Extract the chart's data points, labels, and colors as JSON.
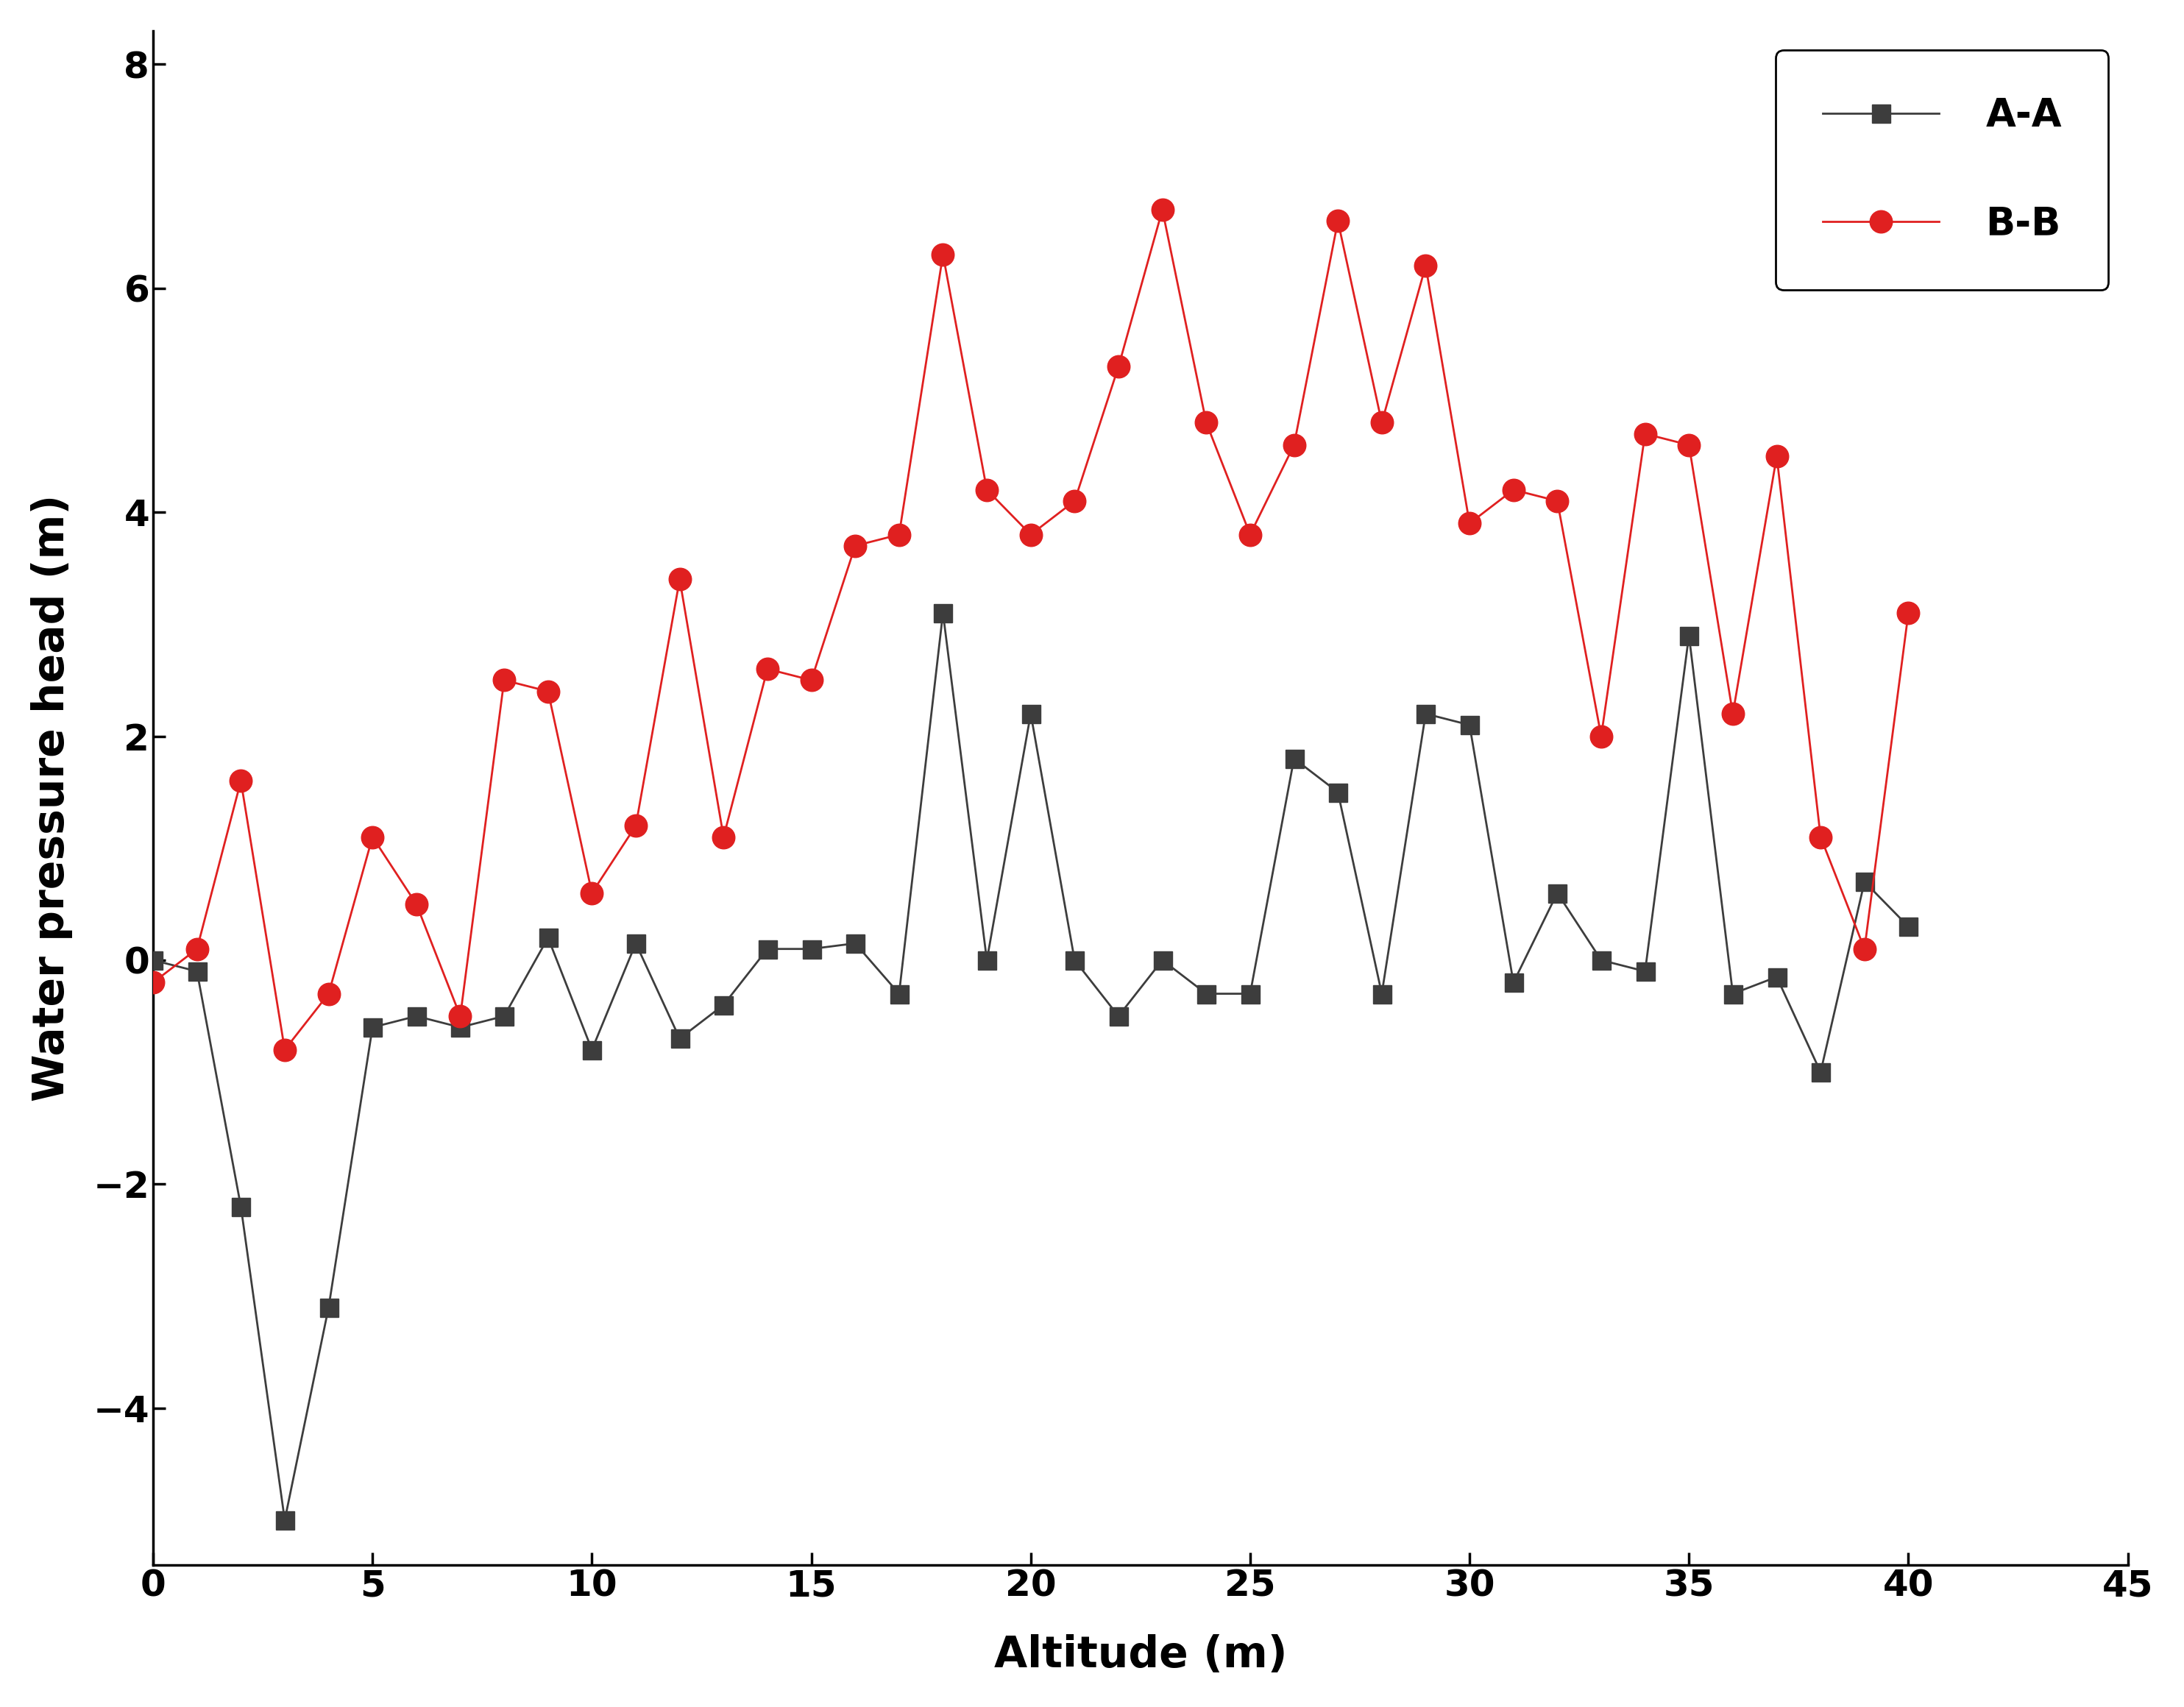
{
  "aa_x": [
    0,
    1,
    2,
    3,
    4,
    5,
    6,
    7,
    8,
    9,
    10,
    11,
    12,
    13,
    14,
    15,
    16,
    17,
    18,
    19,
    20,
    21,
    22,
    23,
    24,
    25,
    26,
    27,
    28,
    29,
    30,
    31,
    32,
    33,
    34,
    35,
    36,
    37,
    38,
    39,
    40
  ],
  "aa_y": [
    0.0,
    -0.1,
    -2.2,
    -5.0,
    -3.1,
    -0.6,
    -0.5,
    -0.6,
    -0.5,
    0.2,
    -0.8,
    0.15,
    -0.7,
    -0.4,
    0.1,
    0.1,
    0.15,
    -0.3,
    3.1,
    0.0,
    2.2,
    0.0,
    -0.5,
    0.0,
    -0.3,
    -0.3,
    1.8,
    1.5,
    -0.3,
    2.2,
    2.1,
    -0.2,
    0.6,
    0.0,
    -0.1,
    2.9,
    -0.3,
    -0.15,
    -1.0,
    0.7,
    0.3
  ],
  "bb_x": [
    0,
    1,
    2,
    3,
    4,
    5,
    6,
    7,
    8,
    9,
    10,
    11,
    12,
    13,
    14,
    15,
    16,
    17,
    18,
    19,
    20,
    21,
    22,
    23,
    24,
    25,
    26,
    27,
    28,
    29,
    30,
    31,
    32,
    33,
    34,
    35,
    36,
    37,
    38,
    39,
    40
  ],
  "bb_y": [
    -0.2,
    0.1,
    1.6,
    -0.8,
    -0.3,
    1.1,
    0.5,
    -0.5,
    2.5,
    2.4,
    0.6,
    1.2,
    3.4,
    1.1,
    2.6,
    2.5,
    3.7,
    3.8,
    6.3,
    4.2,
    3.8,
    4.1,
    5.3,
    6.7,
    4.8,
    3.8,
    4.6,
    6.6,
    4.8,
    6.2,
    3.9,
    4.2,
    4.1,
    2.0,
    4.7,
    4.6,
    2.2,
    4.5,
    1.1,
    0.1,
    3.1
  ],
  "aa_color": "#3d3d3d",
  "bb_color": "#e02020",
  "aa_label": "A-A",
  "bb_label": "B-B",
  "xlabel": "Altitude (m)",
  "ylabel": "Water pressure head (m)",
  "xlim": [
    0,
    45
  ],
  "ylim": [
    -5.4,
    8.3
  ],
  "xticks": [
    0,
    5,
    10,
    15,
    20,
    25,
    30,
    35,
    40,
    45
  ],
  "yticks": [
    -4,
    -2,
    0,
    2,
    4,
    6,
    8
  ],
  "font_size_label": 42,
  "font_size_tick": 36,
  "font_size_legend": 38,
  "marker_size_aa": 18,
  "marker_size_bb": 22,
  "line_width": 2.0
}
